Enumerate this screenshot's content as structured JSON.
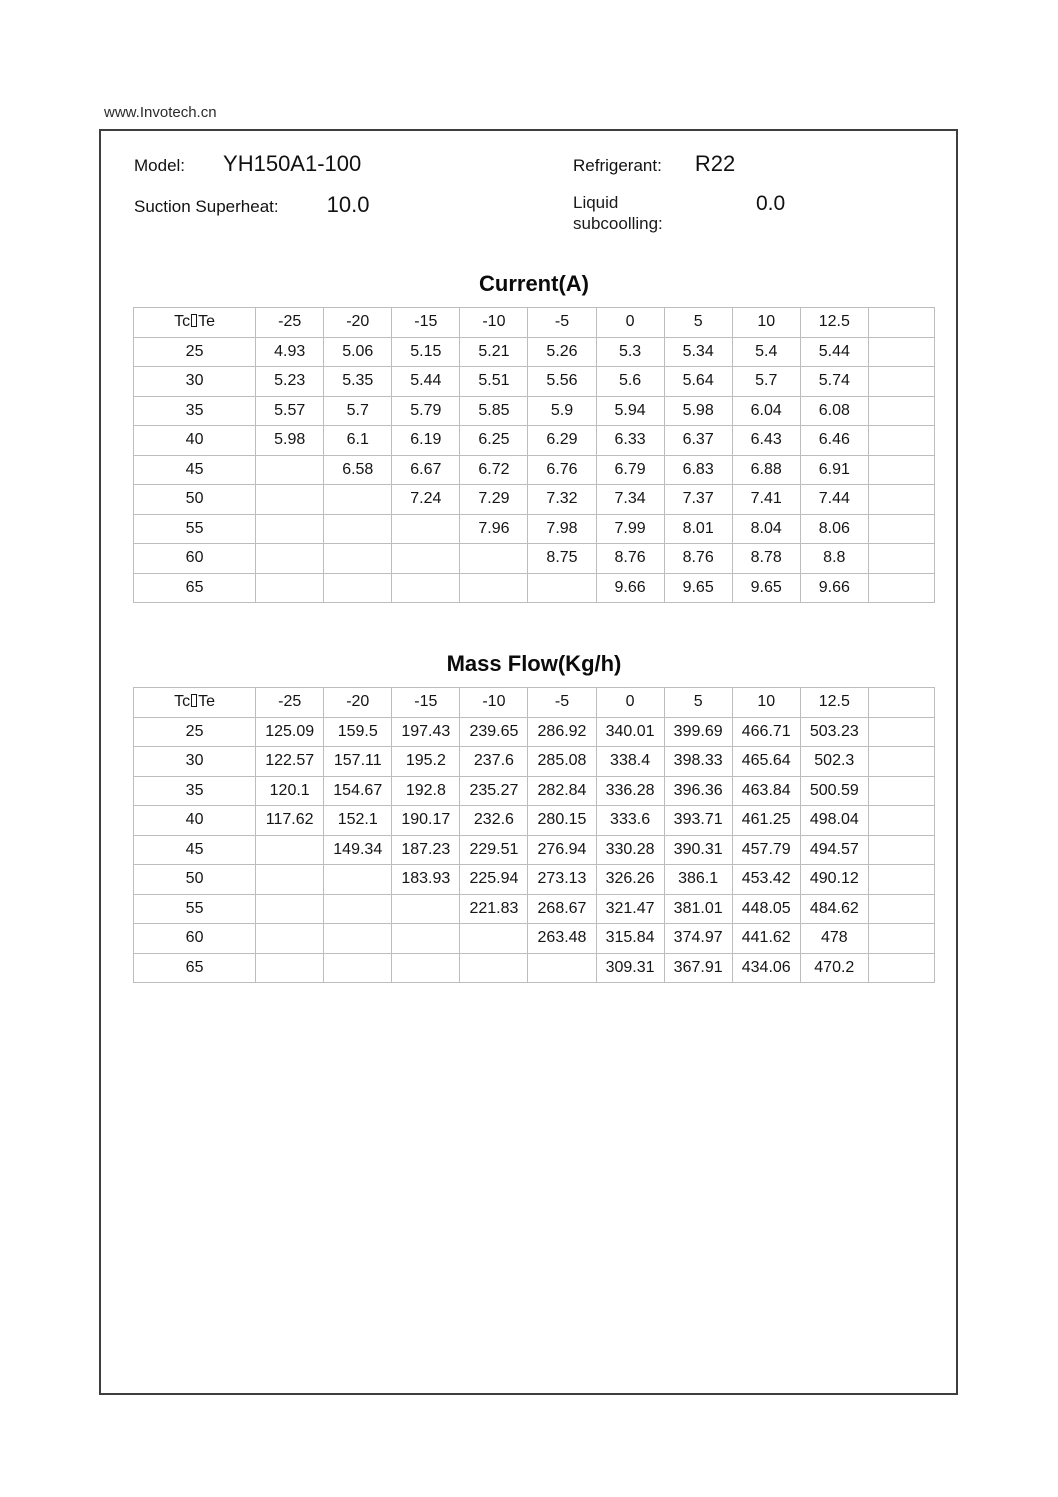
{
  "site": "www.Invotech.cn",
  "header": {
    "model_label": "Model:",
    "model_value": "YH150A1-100",
    "refrigerant_label": "Refrigerant:",
    "refrigerant_value": "R22",
    "superheat_label": "Suction Superheat:",
    "superheat_value": "10.0",
    "subcooling_label": "Liquid subcoolling:",
    "subcooling_value": "0.0"
  },
  "tables": [
    {
      "title": "Current(A)",
      "corner": {
        "pre": "Tc",
        "post": "Te"
      },
      "columns": [
        "-25",
        "-20",
        "-15",
        "-10",
        "-5",
        "0",
        "5",
        "10",
        "12.5"
      ],
      "rows": [
        {
          "label": "25",
          "values": [
            "4.93",
            "5.06",
            "5.15",
            "5.21",
            "5.26",
            "5.3",
            "5.34",
            "5.4",
            "5.44"
          ]
        },
        {
          "label": "30",
          "values": [
            "5.23",
            "5.35",
            "5.44",
            "5.51",
            "5.56",
            "5.6",
            "5.64",
            "5.7",
            "5.74"
          ]
        },
        {
          "label": "35",
          "values": [
            "5.57",
            "5.7",
            "5.79",
            "5.85",
            "5.9",
            "5.94",
            "5.98",
            "6.04",
            "6.08"
          ]
        },
        {
          "label": "40",
          "values": [
            "5.98",
            "6.1",
            "6.19",
            "6.25",
            "6.29",
            "6.33",
            "6.37",
            "6.43",
            "6.46"
          ]
        },
        {
          "label": "45",
          "values": [
            "",
            "6.58",
            "6.67",
            "6.72",
            "6.76",
            "6.79",
            "6.83",
            "6.88",
            "6.91"
          ]
        },
        {
          "label": "50",
          "values": [
            "",
            "",
            "7.24",
            "7.29",
            "7.32",
            "7.34",
            "7.37",
            "7.41",
            "7.44"
          ]
        },
        {
          "label": "55",
          "values": [
            "",
            "",
            "",
            "7.96",
            "7.98",
            "7.99",
            "8.01",
            "8.04",
            "8.06"
          ]
        },
        {
          "label": "60",
          "values": [
            "",
            "",
            "",
            "",
            "8.75",
            "8.76",
            "8.76",
            "8.78",
            "8.8"
          ]
        },
        {
          "label": "65",
          "values": [
            "",
            "",
            "",
            "",
            "",
            "9.66",
            "9.65",
            "9.65",
            "9.66"
          ]
        }
      ]
    },
    {
      "title": "Mass Flow(Kg/h)",
      "corner": {
        "pre": "Tc",
        "post": "Te"
      },
      "columns": [
        "-25",
        "-20",
        "-15",
        "-10",
        "-5",
        "0",
        "5",
        "10",
        "12.5"
      ],
      "rows": [
        {
          "label": "25",
          "values": [
            "125.09",
            "159.5",
            "197.43",
            "239.65",
            "286.92",
            "340.01",
            "399.69",
            "466.71",
            "503.23"
          ]
        },
        {
          "label": "30",
          "values": [
            "122.57",
            "157.11",
            "195.2",
            "237.6",
            "285.08",
            "338.4",
            "398.33",
            "465.64",
            "502.3"
          ]
        },
        {
          "label": "35",
          "values": [
            "120.1",
            "154.67",
            "192.8",
            "235.27",
            "282.84",
            "336.28",
            "396.36",
            "463.84",
            "500.59"
          ]
        },
        {
          "label": "40",
          "values": [
            "117.62",
            "152.1",
            "190.17",
            "232.6",
            "280.15",
            "333.6",
            "393.71",
            "461.25",
            "498.04"
          ]
        },
        {
          "label": "45",
          "values": [
            "",
            "149.34",
            "187.23",
            "229.51",
            "276.94",
            "330.28",
            "390.31",
            "457.79",
            "494.57"
          ]
        },
        {
          "label": "50",
          "values": [
            "",
            "",
            "183.93",
            "225.94",
            "273.13",
            "326.26",
            "386.1",
            "453.42",
            "490.12"
          ]
        },
        {
          "label": "55",
          "values": [
            "",
            "",
            "",
            "221.83",
            "268.67",
            "321.47",
            "381.01",
            "448.05",
            "484.62"
          ]
        },
        {
          "label": "60",
          "values": [
            "",
            "",
            "",
            "",
            "263.48",
            "315.84",
            "374.97",
            "441.62",
            "478"
          ]
        },
        {
          "label": "65",
          "values": [
            "",
            "",
            "",
            "",
            "",
            "309.31",
            "367.91",
            "434.06",
            "470.2"
          ]
        }
      ]
    }
  ],
  "layout_hints": {
    "col_width_first": 122,
    "col_width_data": 68,
    "col_width_filler": 66
  }
}
